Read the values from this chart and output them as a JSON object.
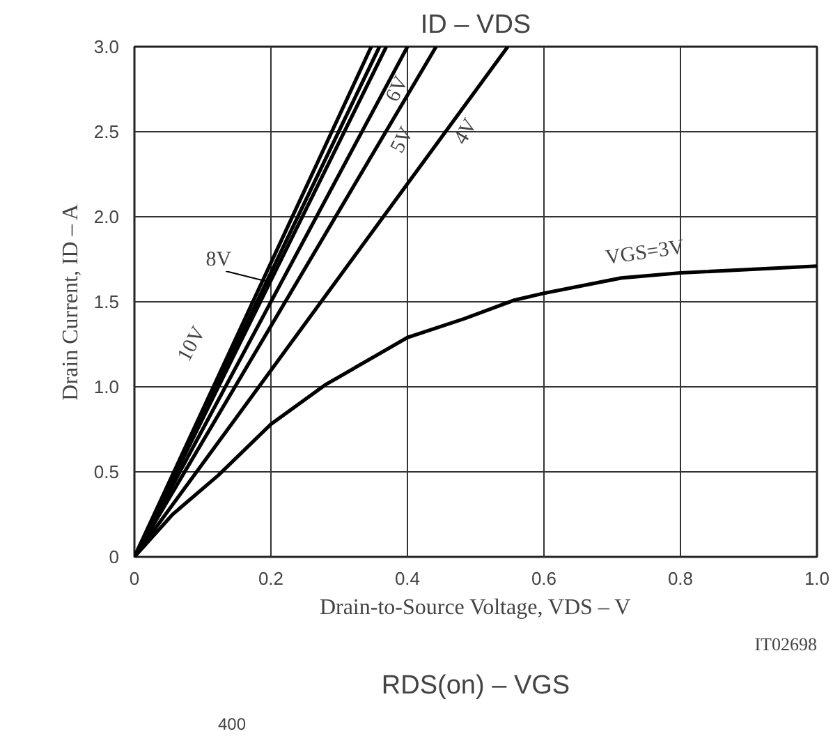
{
  "chart_data": {
    "type": "line",
    "title": "ID – VDS",
    "xlabel": "Drain-to-Source Voltage, VDS – V",
    "ylabel": "Drain Current, ID – A",
    "xlim": [
      0,
      1.0
    ],
    "ylim": [
      0,
      3.0
    ],
    "xticks": [
      0,
      0.2,
      0.4,
      0.6,
      0.8,
      {
        "value": 1.0,
        "label": "1.0"
      }
    ],
    "yticks": [
      0,
      0.5,
      {
        "value": 1.0,
        "label": "1.0"
      },
      1.5,
      {
        "value": 2.0,
        "label": "2.0"
      },
      2.5,
      {
        "value": 3.0,
        "label": "3.0"
      }
    ],
    "grid": true,
    "legend": false,
    "marker": "none",
    "line_style": "solid",
    "series": [
      {
        "name": "10V",
        "color": "#000000",
        "x": [
          0,
          0.347
        ],
        "values": [
          0,
          3.0
        ]
      },
      {
        "name": "8V",
        "color": "#000000",
        "x": [
          0,
          0.359
        ],
        "values": [
          0,
          3.0
        ]
      },
      {
        "color": "#000000",
        "x": [
          0,
          0.369
        ],
        "values": [
          0,
          3.0
        ]
      },
      {
        "name": "6V",
        "color": "#000000",
        "x": [
          0,
          0.4
        ],
        "values": [
          0,
          3.0
        ]
      },
      {
        "name": "5V",
        "color": "#000000",
        "x": [
          0,
          0.442
        ],
        "values": [
          0,
          3.0
        ]
      },
      {
        "name": "4V",
        "color": "#000000",
        "x": [
          0,
          0.547
        ],
        "values": [
          0,
          3.0
        ]
      },
      {
        "name": "VGS=3V",
        "color": "#000000",
        "x": [
          0,
          0.056,
          0.123,
          0.2,
          0.279,
          0.4,
          0.483,
          0.557,
          0.6,
          0.713,
          0.8,
          1.0
        ],
        "values": [
          0,
          0.25,
          0.48,
          0.78,
          1.01,
          1.29,
          1.4,
          1.51,
          1.55,
          1.64,
          1.67,
          1.71
        ]
      }
    ],
    "annotations": [
      "IT02698",
      "RDS(on) – VGS",
      "400"
    ]
  }
}
